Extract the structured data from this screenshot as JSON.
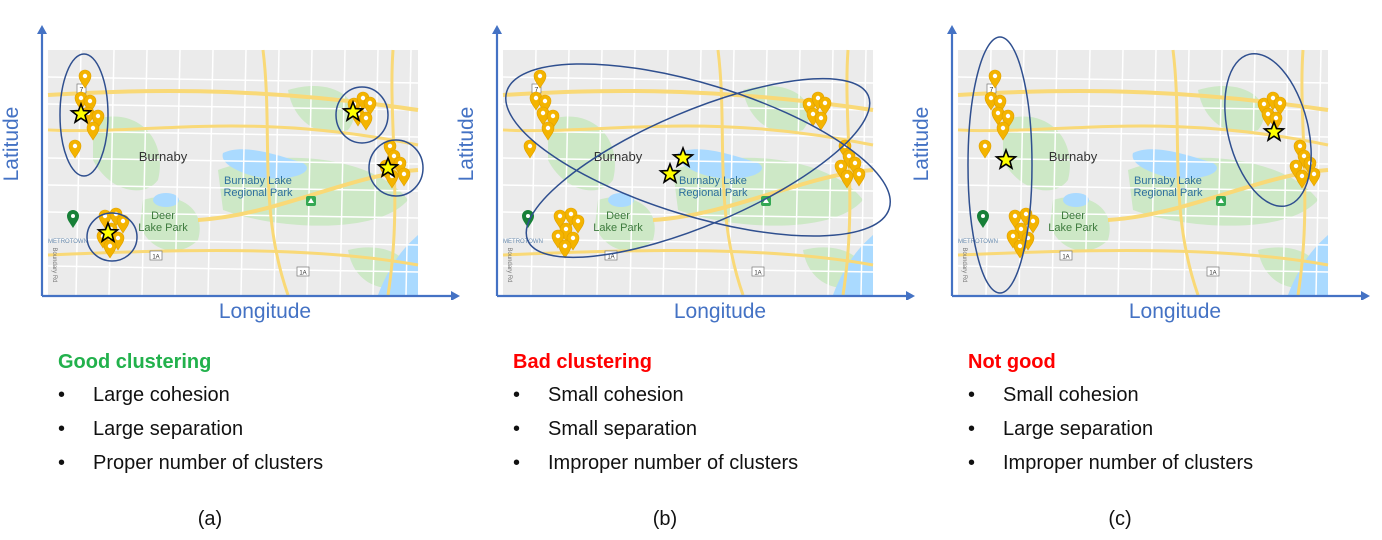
{
  "map_labels": {
    "town": "Burnaby",
    "lake_line1": "Burnaby Lake",
    "lake_line2": "Regional Park",
    "park_line1": "Deer",
    "park_line2": "Lake Park",
    "metro": "METROTOWN",
    "route_7": "7",
    "route_1a": "1A",
    "road": "Boundary Rd"
  },
  "colors": {
    "axis": "#4472c4",
    "ellipse": "#2f4f8f",
    "pin": "#f4b400",
    "centroid": "#ffff00",
    "good": "#22b14c",
    "bad": "#ff0000"
  },
  "panels": [
    {
      "id": "a",
      "ylabel": "Latitude",
      "xlabel": "Longitude",
      "heading": "Good clustering",
      "heading_color": "#22b14c",
      "bullets": [
        "Large cohesion",
        "Large separation",
        "Proper number of clusters"
      ],
      "caption": "(a)"
    },
    {
      "id": "b",
      "ylabel": "Latitude",
      "xlabel": "Longitude",
      "heading": "Bad clustering",
      "heading_color": "#ff0000",
      "bullets": [
        "Small cohesion",
        "Small separation",
        "Improper number of clusters"
      ],
      "caption": "(b)"
    },
    {
      "id": "c",
      "ylabel": "Latitude",
      "xlabel": "Longitude",
      "heading": "Not good",
      "heading_color": "#ff0000",
      "bullets": [
        "Small cohesion",
        "Large separation",
        "Improper number of clusters"
      ],
      "caption": "(c)"
    }
  ]
}
